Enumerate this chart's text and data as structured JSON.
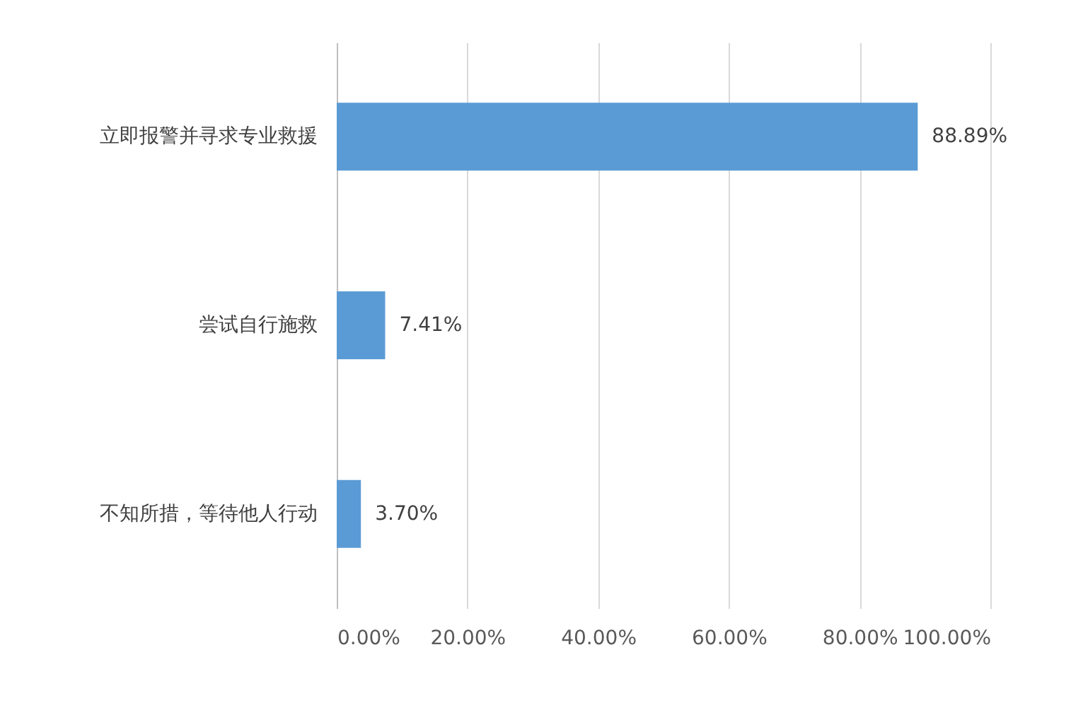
{
  "chart_data": {
    "type": "bar",
    "orientation": "horizontal",
    "categories": [
      "立即报警并寻求专业救援",
      "尝试自行施救",
      "不知所措，等待他人行动"
    ],
    "values": [
      88.89,
      7.41,
      3.7
    ],
    "value_labels": [
      "88.89%",
      "7.41%",
      "3.70%"
    ],
    "color": "#5b9bd5",
    "xlim": [
      0,
      100
    ],
    "xticks": [
      {
        "value": 0,
        "label": "0.00%"
      },
      {
        "value": 20,
        "label": "20.00%"
      },
      {
        "value": 40,
        "label": "40.00%"
      },
      {
        "value": 60,
        "label": "60.00%"
      },
      {
        "value": 80,
        "label": "80.00%"
      },
      {
        "value": 100,
        "label": "100.00%"
      }
    ],
    "grid": "x"
  }
}
